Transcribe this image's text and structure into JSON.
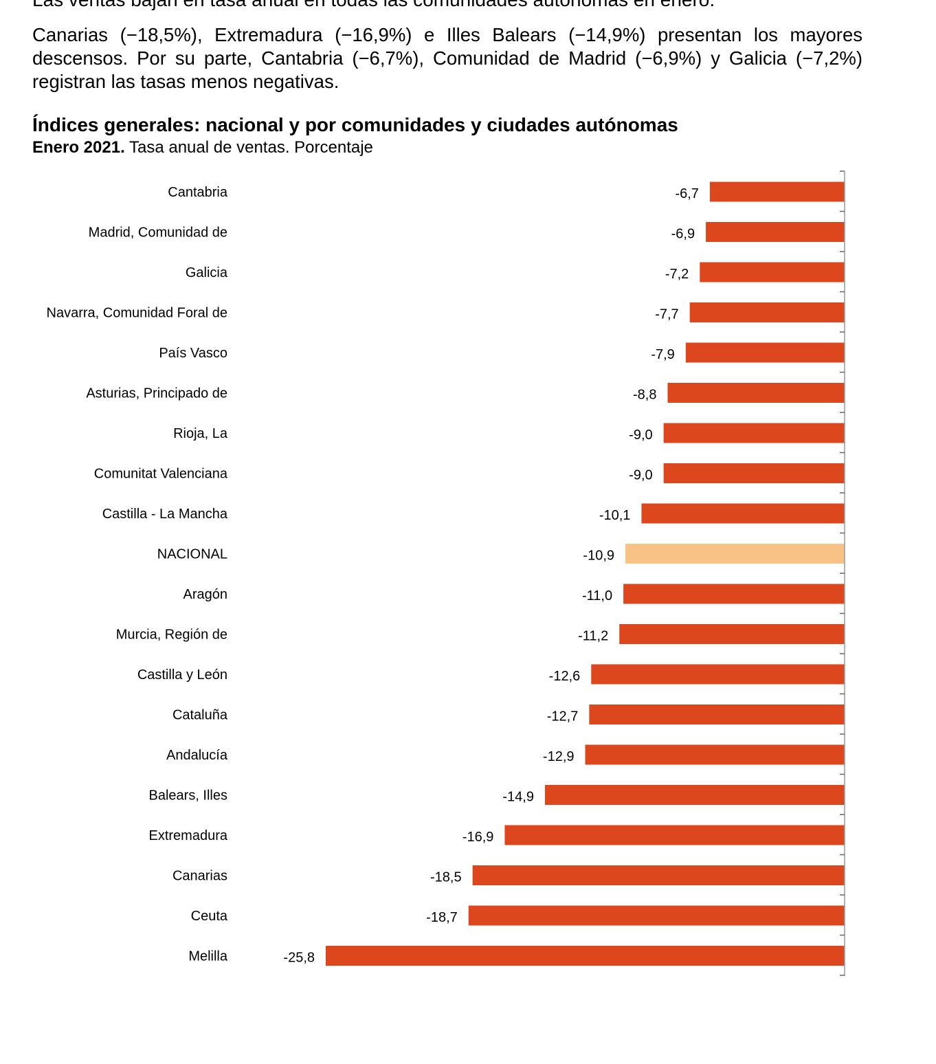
{
  "text": {
    "intro_line": "Las ventas bajan en tasa anual en todas las comunidades autónomas en enero.",
    "paragraph": "Canarias (−18,5%), Extremadura (−16,9%) e Illes Balears (−14,9%) presentan los mayores descensos. Por su parte, Cantabria (−6,7%), Comunidad de Madrid (−6,9%) y Galicia (−7,2%) registran las tasas menos negativas."
  },
  "chart_data": {
    "type": "bar",
    "orientation": "horizontal",
    "title": "Índices generales: nacional y por comunidades y ciudades autónomas",
    "subtitle_bold": "Enero 2021.",
    "subtitle": "Tasa anual de ventas. Porcentaje",
    "categories": [
      "Cantabria",
      "Madrid, Comunidad de",
      "Galicia",
      "Navarra, Comunidad Foral de",
      "País Vasco",
      "Asturias, Principado de",
      "Rioja, La",
      "Comunitat Valenciana",
      "Castilla - La Mancha",
      "NACIONAL",
      "Aragón",
      "Murcia, Región de",
      "Castilla y León",
      "Cataluña",
      "Andalucía",
      "Balears, Illes",
      "Extremadura",
      "Canarias",
      "Ceuta",
      "Melilla"
    ],
    "values": [
      -6.7,
      -6.9,
      -7.2,
      -7.7,
      -7.9,
      -8.8,
      -9.0,
      -9.0,
      -10.1,
      -10.9,
      -11.0,
      -11.2,
      -12.6,
      -12.7,
      -12.9,
      -14.9,
      -16.9,
      -18.5,
      -18.7,
      -25.8
    ],
    "data_labels": [
      "-6,7",
      "-6,9",
      "-7,2",
      "-7,7",
      "-7,9",
      "-8,8",
      "-9,0",
      "-9,0",
      "-10,1",
      "-10,9",
      "-11,0",
      "-11,2",
      "-12,6",
      "-12,7",
      "-12,9",
      "-14,9",
      "-16,9",
      "-18,5",
      "-18,7",
      "-25,8"
    ],
    "xlim": [
      -25.8,
      0
    ],
    "grid": false,
    "legend": "none",
    "colors": {
      "bar": "#dc471e",
      "highlight": "#f8c286",
      "highlight_category": "NACIONAL",
      "axis": "#999999"
    }
  }
}
